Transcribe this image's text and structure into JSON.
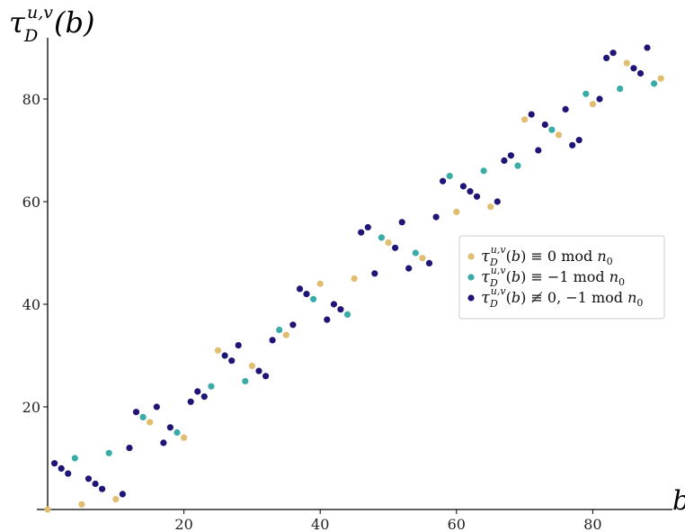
{
  "chart_data": {
    "type": "scatter",
    "xlabel": "b",
    "ylabel": "τ_D^{u,v}(b)",
    "xlim": [
      0,
      92
    ],
    "ylim": [
      0,
      92
    ],
    "x_ticks": [
      20,
      40,
      60,
      80
    ],
    "y_ticks": [
      20,
      40,
      60,
      80
    ],
    "grid": false,
    "legend_position": "right",
    "series": [
      {
        "name": "τ_D^{u,v}(b) ≡ 0 mod n_0",
        "color": "#e0bd6f",
        "points": [
          [
            0,
            0
          ],
          [
            5,
            1
          ],
          [
            10,
            2
          ],
          [
            15,
            17
          ],
          [
            20,
            14
          ],
          [
            25,
            31
          ],
          [
            30,
            28
          ],
          [
            35,
            34
          ],
          [
            40,
            44
          ],
          [
            45,
            45
          ],
          [
            50,
            52
          ],
          [
            55,
            49
          ],
          [
            60,
            58
          ],
          [
            65,
            59
          ],
          [
            70,
            76
          ],
          [
            75,
            73
          ],
          [
            80,
            79
          ],
          [
            85,
            87
          ],
          [
            90,
            84
          ]
        ]
      },
      {
        "name": "τ_D^{u,v}(b) ≡ −1 mod n_0",
        "color": "#3aaca7",
        "points": [
          [
            4,
            10
          ],
          [
            9,
            11
          ],
          [
            14,
            18
          ],
          [
            19,
            15
          ],
          [
            24,
            24
          ],
          [
            29,
            25
          ],
          [
            34,
            35
          ],
          [
            39,
            41
          ],
          [
            44,
            38
          ],
          [
            49,
            53
          ],
          [
            54,
            50
          ],
          [
            59,
            65
          ],
          [
            64,
            66
          ],
          [
            69,
            67
          ],
          [
            74,
            74
          ],
          [
            79,
            81
          ],
          [
            84,
            82
          ],
          [
            89,
            83
          ]
        ]
      },
      {
        "name": "τ_D^{u,v}(b) ≢ 0, −1 mod n_0",
        "color": "#1f1577",
        "points": [
          [
            1,
            9
          ],
          [
            2,
            8
          ],
          [
            3,
            7
          ],
          [
            6,
            6
          ],
          [
            7,
            5
          ],
          [
            8,
            4
          ],
          [
            11,
            3
          ],
          [
            12,
            12
          ],
          [
            13,
            19
          ],
          [
            16,
            20
          ],
          [
            17,
            13
          ],
          [
            18,
            16
          ],
          [
            21,
            21
          ],
          [
            22,
            23
          ],
          [
            23,
            22
          ],
          [
            26,
            30
          ],
          [
            27,
            29
          ],
          [
            28,
            32
          ],
          [
            31,
            27
          ],
          [
            32,
            26
          ],
          [
            33,
            33
          ],
          [
            36,
            36
          ],
          [
            37,
            43
          ],
          [
            38,
            42
          ],
          [
            41,
            37
          ],
          [
            42,
            40
          ],
          [
            43,
            39
          ],
          [
            46,
            54
          ],
          [
            47,
            55
          ],
          [
            48,
            46
          ],
          [
            51,
            51
          ],
          [
            52,
            56
          ],
          [
            53,
            47
          ],
          [
            56,
            48
          ],
          [
            57,
            57
          ],
          [
            58,
            64
          ],
          [
            61,
            63
          ],
          [
            62,
            62
          ],
          [
            63,
            61
          ],
          [
            66,
            60
          ],
          [
            67,
            68
          ],
          [
            68,
            69
          ],
          [
            71,
            77
          ],
          [
            72,
            70
          ],
          [
            73,
            75
          ],
          [
            76,
            78
          ],
          [
            77,
            71
          ],
          [
            78,
            72
          ],
          [
            81,
            80
          ],
          [
            82,
            88
          ],
          [
            83,
            89
          ],
          [
            86,
            86
          ],
          [
            87,
            85
          ],
          [
            88,
            90
          ]
        ]
      }
    ]
  }
}
